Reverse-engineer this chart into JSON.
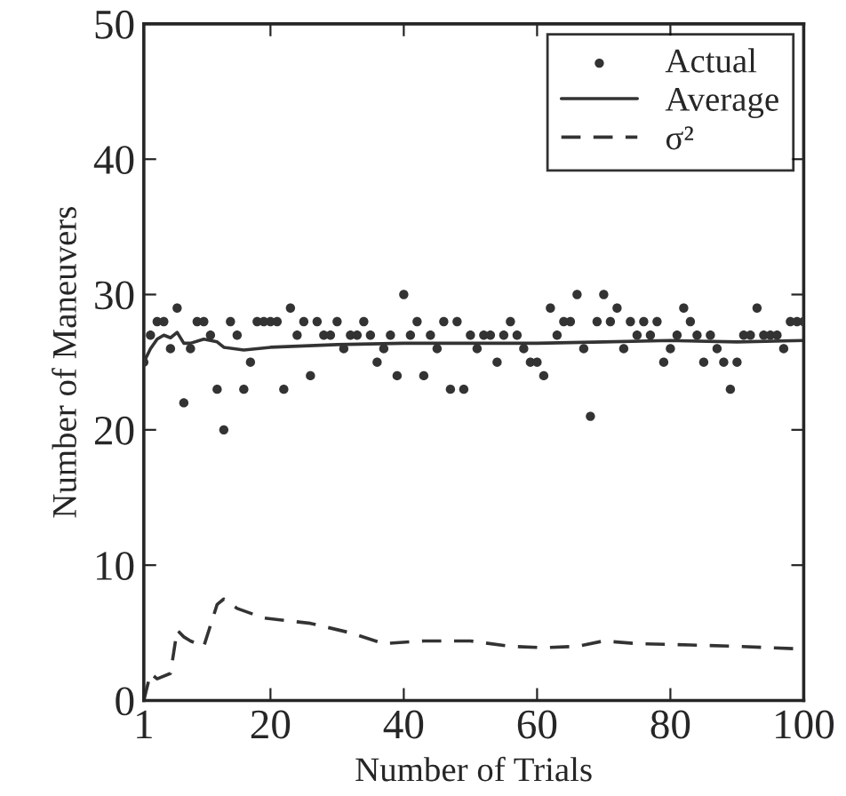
{
  "chart_data": {
    "type": "scatter",
    "xlabel": "Number of Trials",
    "ylabel": "Number of Maneuvers",
    "xlim": [
      1,
      100
    ],
    "ylim": [
      0,
      50
    ],
    "xticks": [
      1,
      20,
      40,
      60,
      80,
      100
    ],
    "yticks": [
      0,
      10,
      20,
      30,
      40,
      50
    ],
    "grid": false,
    "legend": "top right",
    "series": [
      {
        "name": "Actual",
        "marker": "circle",
        "color": "#333333",
        "x": [
          1,
          2,
          3,
          4,
          5,
          6,
          7,
          8,
          9,
          10,
          11,
          12,
          13,
          14,
          15,
          16,
          17,
          18,
          19,
          20,
          21,
          22,
          23,
          24,
          25,
          26,
          27,
          28,
          29,
          30,
          31,
          32,
          33,
          34,
          35,
          36,
          37,
          38,
          39,
          40,
          41,
          42,
          43,
          44,
          45,
          46,
          47,
          48,
          49,
          50,
          51,
          52,
          53,
          54,
          55,
          56,
          57,
          58,
          59,
          60,
          61,
          62,
          63,
          64,
          65,
          66,
          67,
          68,
          69,
          70,
          71,
          72,
          73,
          74,
          75,
          76,
          77,
          78,
          79,
          80,
          81,
          82,
          83,
          84,
          85,
          86,
          87,
          88,
          89,
          90,
          91,
          92,
          93,
          94,
          95,
          96,
          97,
          98,
          99,
          100
        ],
        "values": [
          25,
          27,
          28,
          28,
          26,
          29,
          22,
          26,
          28,
          28,
          27,
          23,
          20,
          28,
          27,
          23,
          25,
          28,
          28,
          28,
          28,
          23,
          29,
          27,
          28,
          24,
          28,
          27,
          27,
          28,
          26,
          27,
          27,
          28,
          27,
          25,
          26,
          27,
          24,
          30,
          27,
          28,
          24,
          27,
          26,
          28,
          23,
          28,
          23,
          27,
          26,
          27,
          27,
          25,
          27,
          28,
          27,
          26,
          25,
          25,
          24,
          29,
          27,
          28,
          28,
          30,
          26,
          21,
          28,
          30,
          28,
          29,
          26,
          28,
          27,
          28,
          27,
          28,
          25,
          26,
          27,
          29,
          28,
          27,
          25,
          27,
          26,
          25,
          23,
          25,
          27,
          27,
          29,
          27,
          27,
          27,
          26,
          28,
          28,
          28
        ]
      },
      {
        "name": "Average",
        "type": "line",
        "line_style": "solid",
        "color": "#333333",
        "x": [
          1,
          2,
          3,
          4,
          5,
          6,
          7,
          8,
          10,
          12,
          13,
          16,
          20,
          30,
          40,
          50,
          60,
          70,
          80,
          90,
          100
        ],
        "values": [
          25,
          26,
          26.7,
          27,
          26.8,
          27.2,
          26.4,
          26.4,
          26.7,
          26.5,
          26.1,
          25.9,
          26.1,
          26.3,
          26.4,
          26.4,
          26.4,
          26.5,
          26.6,
          26.5,
          26.6
        ]
      },
      {
        "name": "σ²",
        "type": "line",
        "line_style": "dashed",
        "color": "#333333",
        "x": [
          1,
          2,
          3,
          5,
          6,
          7,
          8,
          10,
          12,
          13,
          15,
          19,
          26,
          32,
          37,
          43,
          50,
          56,
          61,
          66,
          70,
          75,
          83,
          90,
          100
        ],
        "values": [
          0,
          2.0,
          1.6,
          2.0,
          5.2,
          4.7,
          4.4,
          4.0,
          7.1,
          7.5,
          6.8,
          6.1,
          5.7,
          5.0,
          4.2,
          4.4,
          4.4,
          4.0,
          3.9,
          4.0,
          4.4,
          4.2,
          4.1,
          4.0,
          3.8
        ]
      }
    ]
  }
}
